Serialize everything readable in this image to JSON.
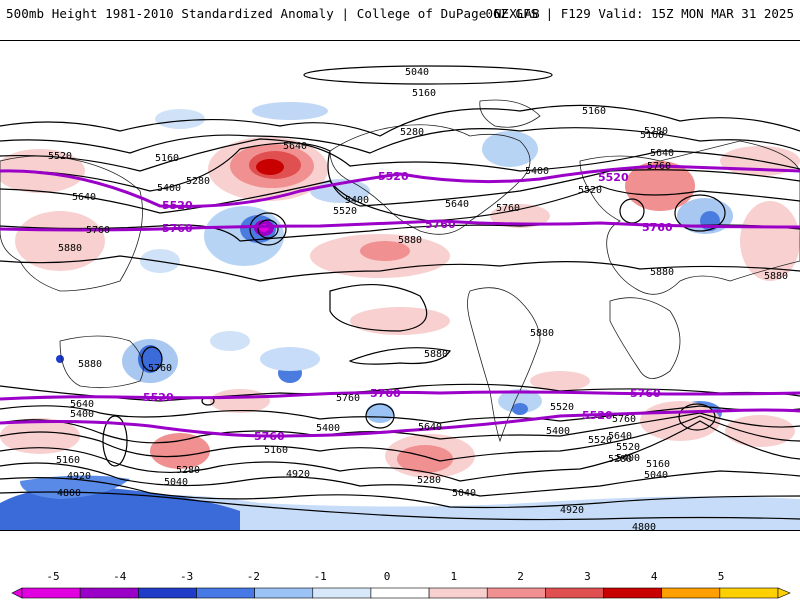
{
  "header": {
    "title": "500mb Height 1981-2010 Standardized Anomaly | College of DuPage NEXLAB",
    "run_info": "06Z GFS | F129 Valid: 15Z MON MAR 31 2025"
  },
  "contour_labels": {
    "black": [
      "5040",
      "5160",
      "5160",
      "5280",
      "5160",
      "5520",
      "5640",
      "5160",
      "5400",
      "5280",
      "5400",
      "5520",
      "5400",
      "5520",
      "5640",
      "5760",
      "5280",
      "5640",
      "5760",
      "5880",
      "5880",
      "5640",
      "5880",
      "5760",
      "5880",
      "5880",
      "5880",
      "5880",
      "5760",
      "5640",
      "5400",
      "5160",
      "4920",
      "4800",
      "5400",
      "5280",
      "5040",
      "5760",
      "5160",
      "4920",
      "5640",
      "5520",
      "5520",
      "5280",
      "5040",
      "5400",
      "5760",
      "5640",
      "5520",
      "5400",
      "5280",
      "5160",
      "5040",
      "4920",
      "4800"
    ],
    "purple": [
      "5520",
      "5760",
      "5520",
      "5760",
      "5520",
      "5760",
      "5520",
      "5760",
      "5760",
      "5760",
      "5520",
      "5520"
    ]
  },
  "colorbar": {
    "labels": [
      "-5",
      "-4",
      "-3",
      "-2",
      "-1",
      "0",
      "1",
      "2",
      "3",
      "4",
      "5"
    ],
    "colors": [
      "#e000e0",
      "#9a00c8",
      "#1e3cc8",
      "#4678e6",
      "#9bc3f5",
      "#d8e8fa",
      "#ffffff",
      "#f8d0d0",
      "#f09090",
      "#e05050",
      "#c80000",
      "#ffa000",
      "#ffd000"
    ]
  }
}
